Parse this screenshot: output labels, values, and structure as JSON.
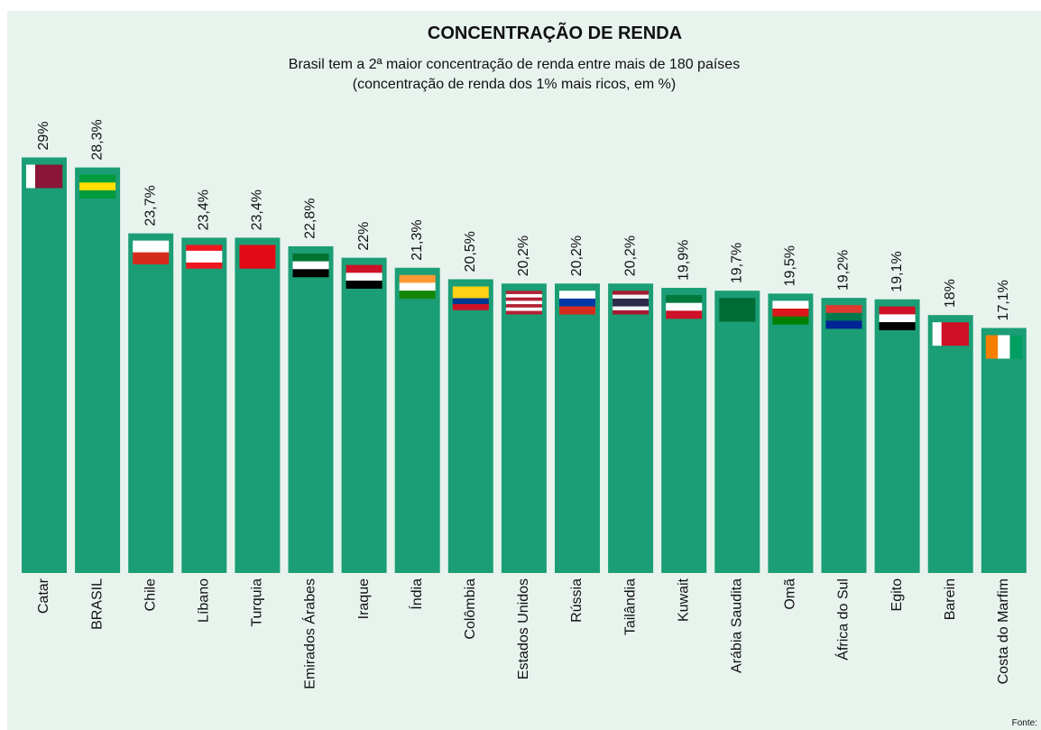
{
  "chart_data": {
    "type": "bar",
    "title": "CONCENTRAÇÃO DE RENDA",
    "subtitle": [
      "Brasil tem a 2ª maior concentração de renda entre mais de 180 países",
      "(concentração de renda dos 1% mais ricos, em %)"
    ],
    "source": "Fonte:",
    "color": "#1b9e75",
    "categories": [
      "Catar",
      "BRASIL",
      "Chile",
      "Líbano",
      "Turquia",
      "Emirados Árabes",
      "Iraque",
      "Índia",
      "Colômbia",
      "Estados Unidos",
      "Rússia",
      "Tailândia",
      "Kuwait",
      "Arábia Saudita",
      "Omã",
      "África do Sul",
      "Egito",
      "Barein",
      "Costa do Marfim"
    ],
    "values": [
      29,
      28.3,
      23.7,
      23.4,
      23.4,
      22.8,
      22,
      21.3,
      20.5,
      20.2,
      20.2,
      20.2,
      19.9,
      19.7,
      19.5,
      19.2,
      19.1,
      18,
      17.1
    ],
    "value_labels": [
      "29%",
      "28,3%",
      "23,7%",
      "23,4%",
      "23,4%",
      "22,8%",
      "22%",
      "21,3%",
      "20,5%",
      "20,2%",
      "20,2%",
      "20,2%",
      "19,9%",
      "19,7%",
      "19,5%",
      "19,2%",
      "19,1%",
      "18%",
      "17,1%"
    ]
  }
}
